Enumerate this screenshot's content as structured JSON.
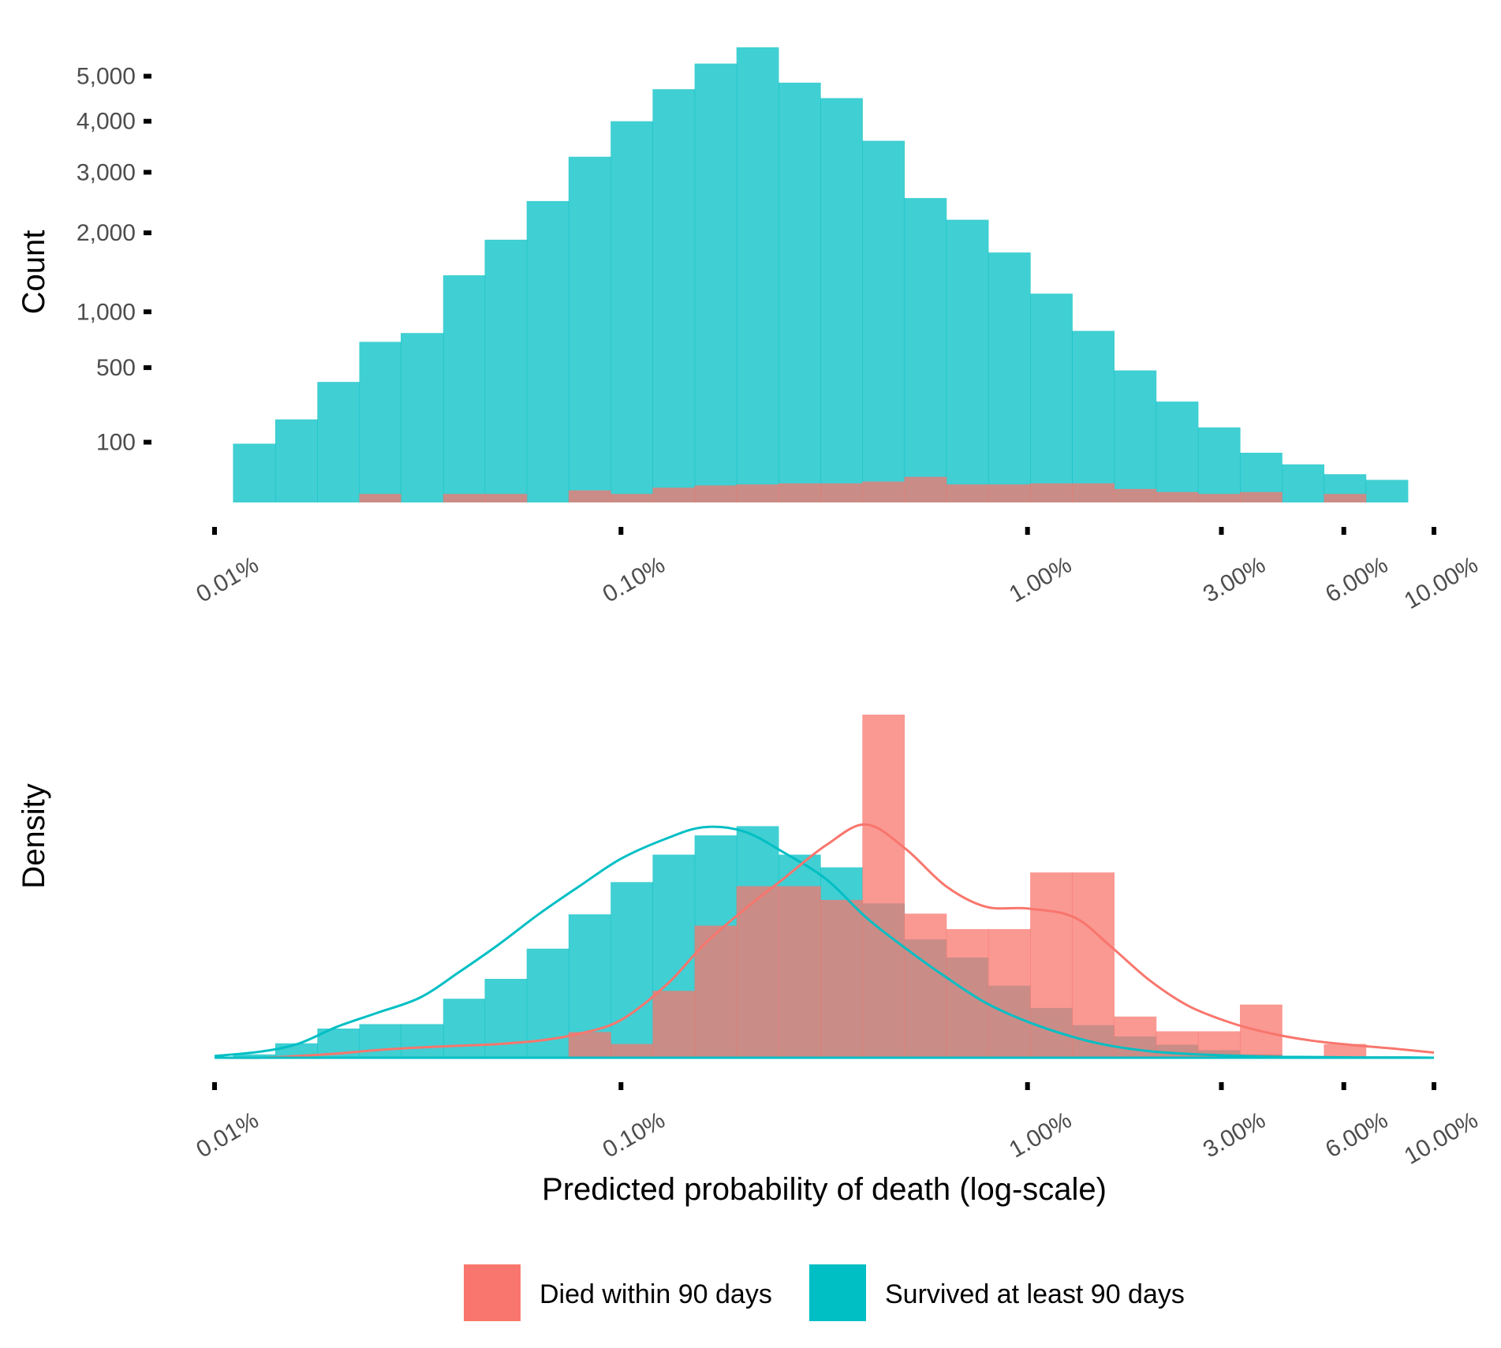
{
  "colors": {
    "died": "#F8766D",
    "survived": "#00BFC4",
    "tick_text": "#4d4d4d",
    "tick_mark": "#000000"
  },
  "chart_data": [
    {
      "type": "bar",
      "panel": "top",
      "ylabel": "Count",
      "y_scale": "sqrt",
      "ylim": [
        0,
        5900
      ],
      "yticks": [
        100,
        500,
        1000,
        2000,
        3000,
        4000,
        5000
      ],
      "ytick_labels": [
        "100",
        "500",
        "1,000",
        "2,000",
        "3,000",
        "4,000",
        "5,000"
      ],
      "x_scale": "log",
      "xlim": [
        0.0001,
        0.1
      ],
      "xticks": [
        0.0001,
        0.001,
        0.01,
        0.03,
        0.06,
        0.1
      ],
      "xtick_labels": [
        "0.01%",
        "0.10%",
        "1.00%",
        "3.00%",
        "6.00%",
        "10.00%"
      ],
      "bin_edges": [
        0.000111,
        0.000141,
        0.000179,
        0.000227,
        0.000287,
        0.000365,
        0.000462,
        0.000586,
        0.000743,
        0.000943,
        0.001196,
        0.001517,
        0.001923,
        0.002439,
        0.003094,
        0.003924,
        0.004977,
        0.006312,
        0.008005,
        0.010153,
        0.012876,
        0.016331,
        0.020712,
        0.026269,
        0.033316,
        0.042254,
        0.05359,
        0.067967,
        0.0862
      ],
      "series": [
        {
          "name": "Survived at least 90 days",
          "color_key": "survived",
          "values": [
            95,
            190,
            400,
            710,
            790,
            1420,
            1900,
            2500,
            3290,
            4000,
            4700,
            5300,
            5700,
            4850,
            4500,
            3600,
            2550,
            2200,
            1720,
            1200,
            810,
            480,
            280,
            155,
            68,
            40,
            22,
            14
          ]
        },
        {
          "name": "Died within 90 days",
          "color_key": "died",
          "values": [
            0,
            0,
            0,
            2,
            0,
            2,
            2,
            0,
            4,
            2,
            6,
            8,
            9,
            10,
            10,
            12,
            18,
            9,
            9,
            10,
            10,
            5,
            3,
            2,
            3,
            0,
            2,
            0
          ]
        }
      ]
    },
    {
      "type": "bar",
      "panel": "bottom",
      "ylabel": "Density",
      "y_scale": "linear",
      "ylim": [
        0,
        1.0
      ],
      "yticks": [],
      "x_scale": "log",
      "xlim": [
        0.0001,
        0.1
      ],
      "xlabel": "Predicted probability of death (log-scale)",
      "xticks": [
        0.0001,
        0.001,
        0.01,
        0.03,
        0.06,
        0.1
      ],
      "xtick_labels": [
        "0.01%",
        "0.10%",
        "1.00%",
        "3.00%",
        "6.00%",
        "10.00%"
      ],
      "bin_edges": [
        0.000111,
        0.000141,
        0.000179,
        0.000227,
        0.000287,
        0.000365,
        0.000462,
        0.000586,
        0.000743,
        0.000943,
        0.001196,
        0.001517,
        0.001923,
        0.002439,
        0.003094,
        0.003924,
        0.004977,
        0.006312,
        0.008005,
        0.010153,
        0.012876,
        0.016331,
        0.020712,
        0.026269,
        0.033316,
        0.042254,
        0.05359,
        0.067967,
        0.0862
      ],
      "series": [
        {
          "name": "Survived at least 90 days",
          "color_key": "survived",
          "values": [
            0.01,
            0.042,
            0.085,
            0.098,
            0.098,
            0.172,
            0.23,
            0.318,
            0.418,
            0.512,
            0.592,
            0.648,
            0.675,
            0.592,
            0.555,
            0.45,
            0.345,
            0.292,
            0.21,
            0.145,
            0.095,
            0.062,
            0.038,
            0.022,
            0.01,
            0.005,
            0.003,
            0.001
          ]
        },
        {
          "name": "Died within 90 days",
          "color_key": "died",
          "values": [
            0,
            0,
            0,
            0,
            0,
            0,
            0,
            0,
            0.075,
            0.04,
            0.195,
            0.385,
            0.5,
            0.5,
            0.46,
            1.0,
            0.42,
            0.375,
            0.375,
            0.54,
            0.54,
            0.12,
            0.077,
            0.077,
            0.155,
            0.0,
            0.04,
            0.0
          ]
        }
      ],
      "density_curves": [
        {
          "name": "Survived at least 90 days",
          "color_key": "survived",
          "x": [
            0.0001,
            0.00013,
            0.00016,
            0.0002,
            0.00025,
            0.00032,
            0.0004,
            0.0005,
            0.00063,
            0.00079,
            0.001,
            0.0013,
            0.0016,
            0.002,
            0.0025,
            0.0032,
            0.004,
            0.005,
            0.0063,
            0.0079,
            0.01,
            0.013,
            0.016,
            0.02,
            0.025,
            0.032,
            0.04,
            0.05,
            0.063,
            0.079,
            0.1
          ],
          "y": [
            0.005,
            0.018,
            0.04,
            0.09,
            0.13,
            0.175,
            0.25,
            0.33,
            0.42,
            0.5,
            0.58,
            0.64,
            0.672,
            0.66,
            0.6,
            0.52,
            0.41,
            0.32,
            0.235,
            0.16,
            0.105,
            0.06,
            0.035,
            0.019,
            0.011,
            0.006,
            0.003,
            0.002,
            0.001,
            0.001,
            0.0
          ]
        },
        {
          "name": "Died within 90 days",
          "color_key": "died",
          "x": [
            0.0001,
            0.00013,
            0.00016,
            0.0002,
            0.00025,
            0.00032,
            0.0004,
            0.0005,
            0.00063,
            0.00079,
            0.001,
            0.0013,
            0.0016,
            0.002,
            0.0025,
            0.0032,
            0.004,
            0.005,
            0.0063,
            0.0079,
            0.01,
            0.013,
            0.016,
            0.02,
            0.025,
            0.032,
            0.04,
            0.05,
            0.063,
            0.079,
            0.1
          ],
          "y": [
            0.0,
            0.0,
            0.005,
            0.012,
            0.022,
            0.03,
            0.035,
            0.04,
            0.05,
            0.07,
            0.11,
            0.215,
            0.33,
            0.43,
            0.52,
            0.62,
            0.68,
            0.61,
            0.5,
            0.44,
            0.435,
            0.41,
            0.325,
            0.225,
            0.15,
            0.1,
            0.07,
            0.05,
            0.037,
            0.027,
            0.015
          ]
        }
      ]
    }
  ],
  "legend": {
    "items": [
      {
        "label": "Died within 90 days",
        "color_key": "died"
      },
      {
        "label": "Survived at least 90 days",
        "color_key": "survived"
      }
    ]
  }
}
